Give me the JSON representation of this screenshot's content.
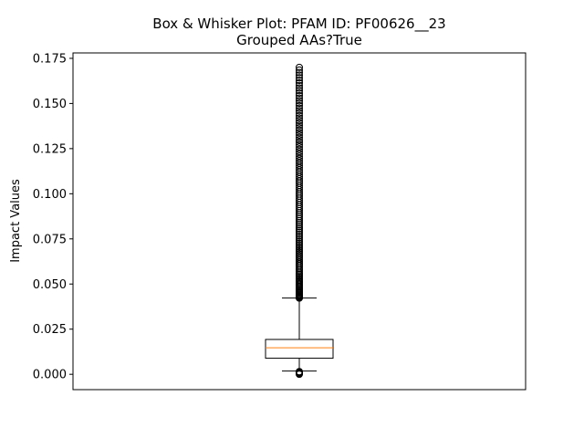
{
  "chart_data": {
    "type": "box",
    "title": "Box & Whisker Plot: PFAM ID: PF00626__23",
    "subtitle": "Grouped AAs?True",
    "xlabel": "",
    "ylabel": "Impact Values",
    "ylim": [
      -0.0085,
      0.178
    ],
    "yticks": [
      0.0,
      0.025,
      0.05,
      0.075,
      0.1,
      0.125,
      0.15,
      0.175
    ],
    "ytick_labels": [
      "0.000",
      "0.025",
      "0.050",
      "0.075",
      "0.100",
      "0.125",
      "0.150",
      "0.175"
    ],
    "grid": false,
    "colors": {
      "median": "#ff7f0e",
      "box": "#000000",
      "outlier": "#000000"
    },
    "box": {
      "whisker_low": 0.0018,
      "q1": 0.0089,
      "median": 0.0147,
      "q3": 0.0193,
      "whisker_high": 0.0422,
      "outliers_low": [
        0.0,
        0.0003,
        0.0006,
        0.0009,
        0.0012,
        0.0015
      ],
      "outliers_high_range": [
        0.0422,
        0.17
      ]
    }
  }
}
